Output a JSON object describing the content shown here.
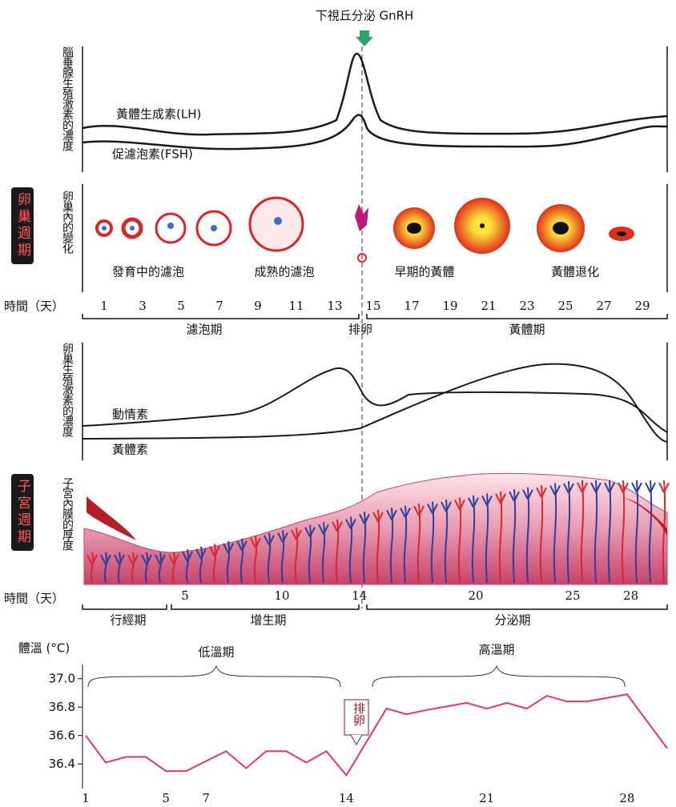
{
  "top_label": "下視丘分泌 GnRH",
  "pituitary_panel": {
    "y_label": "腦垂腺生殖激素的濃度",
    "lh_label": "黃體生成素(LH)",
    "fsh_label": "促濾泡素(FSH)"
  },
  "ovary_panel": {
    "side_label": "卵巢週期",
    "y_label": "卵巢內的變化",
    "stages": [
      "發育中的濾泡",
      "成熟的濾泡",
      "早期的黃體",
      "黃體退化"
    ]
  },
  "time_axis_1": {
    "label": "時間（天）",
    "days": [
      1,
      3,
      5,
      7,
      9,
      11,
      13,
      15,
      17,
      19,
      21,
      23,
      25,
      27,
      29
    ]
  },
  "ovary_phases": [
    "濾泡期",
    "排卵",
    "黃體期"
  ],
  "ovarian_hormone_panel": {
    "y_label": "卵巢生殖激素的濃度",
    "estrogen_label": "動情素",
    "progesterone_label": "黃體素"
  },
  "uterus_panel": {
    "side_label": "子宮週期",
    "y_label": "子宮內膜的厚度"
  },
  "time_axis_2": {
    "label": "時間（天）",
    "days": [
      5,
      10,
      14,
      20,
      25,
      28
    ]
  },
  "uterus_phases": [
    "行經期",
    "增生期",
    "分泌期"
  ],
  "chart_data": {
    "type": "line",
    "y_label": "體溫 (°C)",
    "annotations": [
      "低溫期",
      "高溫期",
      "排卵"
    ],
    "x": [
      1,
      2,
      3,
      4,
      5,
      6,
      8,
      9,
      10,
      11,
      12,
      13,
      14,
      16,
      17,
      18,
      20,
      21,
      22,
      23,
      24,
      25,
      26,
      28,
      30
    ],
    "values": [
      36.6,
      36.41,
      36.45,
      36.45,
      36.35,
      36.35,
      36.49,
      36.37,
      36.49,
      36.49,
      36.41,
      36.49,
      36.32,
      36.79,
      36.75,
      36.78,
      36.83,
      36.79,
      36.83,
      36.79,
      36.88,
      36.84,
      36.84,
      36.89,
      36.51
    ],
    "color": "#e8366a",
    "xlim": [
      1,
      30
    ],
    "ylim": [
      36.3,
      37.1
    ],
    "xticks": [
      1,
      5,
      7,
      14,
      21,
      28
    ],
    "yticks": [
      {
        "value": 37,
        "label": "37.0"
      },
      36.8,
      36.6,
      36.4
    ]
  }
}
